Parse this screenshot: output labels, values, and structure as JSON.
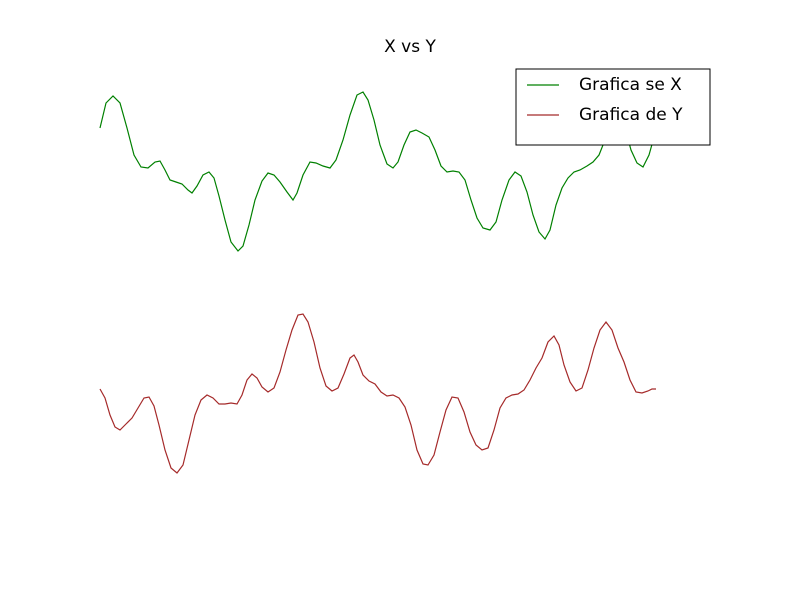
{
  "chart_data": {
    "type": "line",
    "title": "X vs Y",
    "xlim": [
      0,
      620
    ],
    "ylim": [
      0,
      474
    ],
    "legend": "upper right",
    "series": [
      {
        "name": "Grafica se X",
        "color": "#008000",
        "x": [
          0,
          6,
          13,
          20,
          27,
          34,
          41,
          48,
          55,
          60,
          65,
          70,
          76,
          82,
          88,
          92,
          97,
          103,
          109,
          114,
          119,
          125,
          131,
          138,
          143,
          149,
          155,
          162,
          168,
          174,
          180,
          187,
          193,
          197,
          203,
          210,
          216,
          223,
          230,
          236,
          243,
          250,
          257,
          263,
          268,
          274,
          280,
          287,
          293,
          298,
          304,
          310,
          316,
          322,
          329,
          335,
          341,
          347,
          353,
          359,
          365,
          371,
          377,
          383,
          390,
          396,
          402,
          409,
          415,
          421,
          427,
          433,
          439,
          445,
          450,
          456,
          462,
          468,
          474,
          480,
          487,
          493,
          499,
          505,
          511,
          517,
          521,
          525,
          531,
          537,
          543,
          549,
          556
        ],
        "values": [
          406,
          431,
          438,
          431,
          406,
          379,
          367,
          366,
          372,
          373,
          364,
          354,
          352,
          350,
          344,
          341,
          348,
          359,
          362,
          356,
          338,
          314,
          292,
          283,
          288,
          309,
          334,
          353,
          361,
          359,
          352,
          342,
          334,
          341,
          359,
          372,
          371,
          368,
          366,
          374,
          394,
          419,
          439,
          442,
          434,
          414,
          389,
          370,
          366,
          372,
          389,
          402,
          404,
          401,
          397,
          384,
          368,
          362,
          363,
          362,
          354,
          334,
          316,
          306,
          304,
          312,
          334,
          354,
          362,
          358,
          342,
          319,
          302,
          295,
          304,
          329,
          346,
          356,
          362,
          364,
          368,
          372,
          379,
          394,
          419,
          429,
          434,
          406,
          384,
          371,
          367,
          379,
          404
        ]
      },
      {
        "name": "Grafica de Y",
        "color": "#a52a2a",
        "x": [
          0,
          5,
          10,
          15,
          20,
          26,
          32,
          38,
          44,
          49,
          54,
          59,
          65,
          71,
          77,
          83,
          89,
          95,
          101,
          107,
          113,
          119,
          125,
          131,
          137,
          142,
          147,
          152,
          157,
          162,
          168,
          174,
          180,
          186,
          192,
          198,
          203,
          208,
          214,
          220,
          226,
          232,
          238,
          244,
          250,
          254,
          258,
          263,
          269,
          275,
          281,
          287,
          293,
          299,
          305,
          311,
          317,
          323,
          328,
          334,
          340,
          346,
          352,
          358,
          364,
          370,
          376,
          382,
          388,
          394,
          400,
          406,
          412,
          418,
          424,
          430,
          436,
          442,
          448,
          454,
          459,
          464,
          470,
          476,
          482,
          488,
          494,
          500,
          506,
          512,
          518,
          524,
          530,
          536,
          542,
          548,
          552,
          556
        ],
        "values": [
          145,
          136,
          119,
          107,
          104,
          110,
          116,
          126,
          136,
          137,
          128,
          109,
          84,
          66,
          61,
          69,
          94,
          119,
          134,
          139,
          136,
          130,
          130,
          131,
          130,
          139,
          154,
          160,
          156,
          147,
          142,
          146,
          162,
          184,
          204,
          219,
          220,
          212,
          192,
          166,
          148,
          143,
          146,
          160,
          176,
          179,
          172,
          159,
          153,
          150,
          142,
          138,
          139,
          136,
          127,
          109,
          84,
          70,
          69,
          79,
          102,
          124,
          137,
          136,
          122,
          102,
          89,
          84,
          86,
          104,
          126,
          136,
          139,
          140,
          144,
          154,
          166,
          176,
          192,
          198,
          189,
          169,
          152,
          143,
          146,
          164,
          186,
          204,
          212,
          204,
          186,
          172,
          154,
          142,
          141,
          143,
          145,
          145
        ]
      }
    ]
  }
}
